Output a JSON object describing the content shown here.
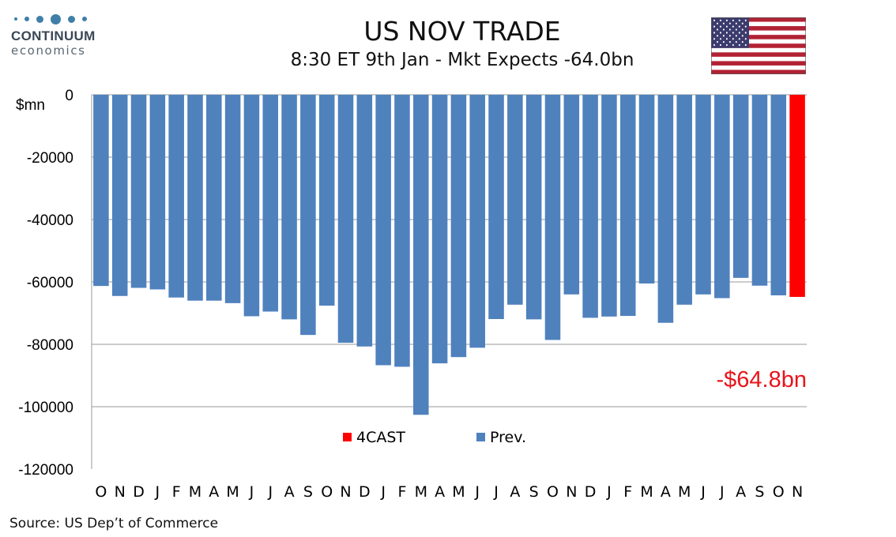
{
  "logo": {
    "name": "CONTINUUM",
    "sub": "economics"
  },
  "header": {
    "title": "US NOV TRADE",
    "subtitle": "8:30 ET 9th Jan - Mkt Expects -64.0bn"
  },
  "source": "Source: US Dep’t of Commerce",
  "colors": {
    "prev": "#4f81bd",
    "forecast": "#ff0000",
    "annotation": "#e8141c"
  },
  "flag_icon": "us-flag-icon",
  "chart_data": {
    "type": "bar",
    "title": "",
    "ylabel": "$mn",
    "ylim": [
      -120000,
      0
    ],
    "yticks": [
      0,
      -20000,
      -40000,
      -60000,
      -80000,
      -100000,
      -120000
    ],
    "grid": true,
    "legend_position": "inside-bottom-center",
    "categories": [
      "O",
      "N",
      "D",
      "J",
      "F",
      "M",
      "A",
      "M",
      "J",
      "J",
      "A",
      "S",
      "O",
      "N",
      "D",
      "J",
      "F",
      "M",
      "A",
      "M",
      "J",
      "J",
      "A",
      "S",
      "O",
      "N",
      "D",
      "J",
      "F",
      "M",
      "A",
      "M",
      "J",
      "J",
      "A",
      "S",
      "O",
      "N"
    ],
    "series": [
      {
        "name": "Prev.",
        "color": "#4f81bd",
        "values": [
          -61300,
          -64500,
          -61900,
          -62400,
          -65000,
          -66000,
          -66000,
          -66800,
          -71000,
          -69500,
          -72000,
          -77000,
          -67600,
          -79500,
          -80700,
          -86700,
          -87200,
          -102600,
          -86100,
          -84100,
          -81100,
          -71900,
          -67300,
          -72000,
          -78600,
          -64000,
          -71500,
          -71100,
          -70900,
          -60500,
          -73100,
          -67300,
          -64000,
          -65200,
          -58700,
          -61200,
          -64300,
          null
        ]
      },
      {
        "name": "4CAST",
        "color": "#ff0000",
        "values": [
          null,
          null,
          null,
          null,
          null,
          null,
          null,
          null,
          null,
          null,
          null,
          null,
          null,
          null,
          null,
          null,
          null,
          null,
          null,
          null,
          null,
          null,
          null,
          null,
          null,
          null,
          null,
          null,
          null,
          null,
          null,
          null,
          null,
          null,
          null,
          null,
          null,
          -64800
        ]
      }
    ],
    "annotation": "-$64.8bn"
  }
}
